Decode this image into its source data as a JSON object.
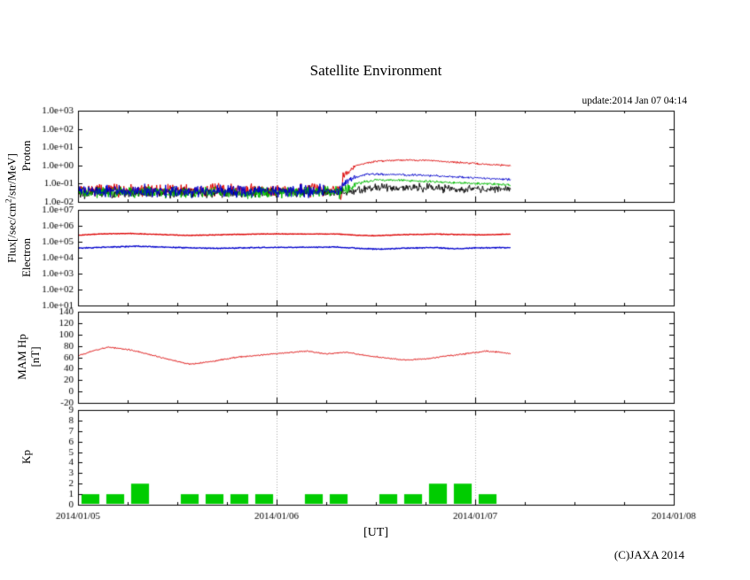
{
  "title": "Satellite Environment",
  "update_text": "update:2014 Jan 07 04:14",
  "copyright": "(C)JAXA 2014",
  "xlabel": "[UT]",
  "flux_label": {
    "pre": "Flux[/sec/cm",
    "sup": "2",
    "post": "/str/MeV]"
  },
  "chart_data": {
    "type": "line",
    "title": "Satellite Environment",
    "x_axis": {
      "range_days": [
        0,
        3
      ],
      "tick_labels": [
        "2014/01/05",
        "2014/01/06",
        "2014/01/07",
        "2014/01/08"
      ],
      "grid_days": [
        1,
        2
      ],
      "minor_tick_hours": 6,
      "major_tick_hours": 24
    },
    "grid_color": "#aaaaaa",
    "panels": [
      {
        "name": "proton",
        "ylabel": "Proton",
        "scale": "log",
        "ymin": 0.01,
        "ymax": 1000,
        "ytick_values": [
          1000,
          100,
          10,
          1,
          0.1,
          0.01
        ],
        "ytick_labels": [
          "1.0e+03",
          "1.0e+02",
          "1.0e+01",
          "1.0e+00",
          "1.0e-01",
          "1.0e-02"
        ],
        "series": [
          {
            "name": "proton-red",
            "color": "#dd0000",
            "points": [
              [
                0,
                0.045
              ],
              [
                1.28,
                0.045
              ],
              [
                1.315,
                0.06
              ],
              [
                1.325,
                0.012
              ],
              [
                1.335,
                0.3
              ],
              [
                1.4,
                1.0
              ],
              [
                1.5,
                1.7
              ],
              [
                1.62,
                2.0
              ],
              [
                1.75,
                1.9
              ],
              [
                1.9,
                1.5
              ],
              [
                2.05,
                1.15
              ],
              [
                2.18,
                1.0
              ]
            ],
            "noise": [
              [
                0,
                0.42
              ],
              [
                1.3,
                0.42
              ],
              [
                1.4,
                0.06
              ],
              [
                2.18,
                0.06
              ]
            ]
          },
          {
            "name": "proton-black",
            "color": "#111111",
            "points": [
              [
                0,
                0.03
              ],
              [
                1.35,
                0.035
              ],
              [
                1.5,
                0.065
              ],
              [
                1.8,
                0.055
              ],
              [
                2.18,
                0.05
              ]
            ],
            "noise": [
              [
                0,
                0.36
              ],
              [
                1.4,
                0.3
              ],
              [
                2.18,
                0.25
              ]
            ]
          },
          {
            "name": "proton-green",
            "color": "#00bb00",
            "points": [
              [
                0,
                0.033
              ],
              [
                1.32,
                0.033
              ],
              [
                1.4,
                0.1
              ],
              [
                1.5,
                0.16
              ],
              [
                1.65,
                0.15
              ],
              [
                1.85,
                0.12
              ],
              [
                2.05,
                0.1
              ],
              [
                2.18,
                0.085
              ]
            ],
            "noise": [
              [
                0,
                0.38
              ],
              [
                1.34,
                0.38
              ],
              [
                1.45,
                0.08
              ],
              [
                2.18,
                0.08
              ]
            ]
          },
          {
            "name": "proton-blue",
            "color": "#0000cc",
            "points": [
              [
                0,
                0.04
              ],
              [
                1.3,
                0.04
              ],
              [
                1.37,
                0.18
              ],
              [
                1.45,
                0.33
              ],
              [
                1.6,
                0.32
              ],
              [
                1.8,
                0.27
              ],
              [
                2.0,
                0.21
              ],
              [
                2.18,
                0.17
              ]
            ],
            "noise": [
              [
                0,
                0.4
              ],
              [
                1.32,
                0.4
              ],
              [
                1.42,
                0.07
              ],
              [
                2.18,
                0.07
              ]
            ]
          }
        ]
      },
      {
        "name": "electron",
        "ylabel": "Electron",
        "scale": "log",
        "ymin": 10,
        "ymax": 10000000,
        "ytick_values": [
          10000000,
          1000000,
          100000,
          10000,
          1000,
          100,
          10
        ],
        "ytick_labels": [
          "1.0e+07",
          "1.0e+06",
          "1.0e+05",
          "1.0e+04",
          "1.0e+03",
          "1.0e+02",
          "1.0e+01"
        ],
        "series": [
          {
            "name": "electron-blue",
            "color": "#0000cc",
            "width": 1.3,
            "points": [
              [
                0,
                40000
              ],
              [
                0.15,
                46000
              ],
              [
                0.3,
                52000
              ],
              [
                0.5,
                43000
              ],
              [
                0.7,
                38000
              ],
              [
                0.9,
                43000
              ],
              [
                1.1,
                45000
              ],
              [
                1.3,
                46000
              ],
              [
                1.42,
                38000
              ],
              [
                1.52,
                34000
              ],
              [
                1.65,
                40000
              ],
              [
                1.8,
                43000
              ],
              [
                1.9,
                36000
              ],
              [
                2.0,
                41000
              ],
              [
                2.18,
                43000
              ]
            ],
            "noise": [
              [
                0,
                0.035
              ],
              [
                2.18,
                0.035
              ]
            ]
          },
          {
            "name": "electron-red",
            "color": "#dd0000",
            "width": 1.3,
            "points": [
              [
                0,
                260000
              ],
              [
                0.12,
                310000
              ],
              [
                0.25,
                330000
              ],
              [
                0.4,
                290000
              ],
              [
                0.55,
                250000
              ],
              [
                0.7,
                270000
              ],
              [
                0.85,
                300000
              ],
              [
                1.0,
                310000
              ],
              [
                1.15,
                300000
              ],
              [
                1.3,
                310000
              ],
              [
                1.4,
                260000
              ],
              [
                1.5,
                240000
              ],
              [
                1.65,
                280000
              ],
              [
                1.8,
                300000
              ],
              [
                1.95,
                280000
              ],
              [
                2.05,
                270000
              ],
              [
                2.18,
                300000
              ]
            ],
            "noise": [
              [
                0,
                0.025
              ],
              [
                2.18,
                0.025
              ]
            ]
          }
        ]
      },
      {
        "name": "mam-hp",
        "ylabel_line1": "MAM Hp",
        "ylabel_line2": "[nT]",
        "scale": "linear",
        "ymin": -20,
        "ymax": 140,
        "ytick_values": [
          140,
          120,
          100,
          80,
          60,
          40,
          20,
          0,
          -20
        ],
        "ytick_labels": [
          "140",
          "120",
          "100",
          "80",
          "60",
          "40",
          "20",
          "0",
          "-20"
        ],
        "series": [
          {
            "name": "hp-red",
            "color": "#dd0000",
            "points": [
              [
                0,
                62
              ],
              [
                0.08,
                72
              ],
              [
                0.16,
                78
              ],
              [
                0.26,
                73
              ],
              [
                0.36,
                65
              ],
              [
                0.46,
                56
              ],
              [
                0.56,
                48
              ],
              [
                0.66,
                52
              ],
              [
                0.8,
                60
              ],
              [
                0.95,
                65
              ],
              [
                1.05,
                68
              ],
              [
                1.15,
                71
              ],
              [
                1.25,
                66
              ],
              [
                1.35,
                69
              ],
              [
                1.45,
                63
              ],
              [
                1.55,
                59
              ],
              [
                1.65,
                55
              ],
              [
                1.75,
                57
              ],
              [
                1.85,
                62
              ],
              [
                1.95,
                66
              ],
              [
                2.05,
                71
              ],
              [
                2.12,
                69
              ],
              [
                2.18,
                66
              ]
            ],
            "noise": [
              [
                0,
                0.7
              ],
              [
                2.18,
                0.7
              ]
            ]
          }
        ]
      },
      {
        "name": "kp",
        "ylabel": "Kp",
        "scale": "linear",
        "ymin": 0,
        "ymax": 9,
        "ytick_values": [
          9,
          8,
          7,
          6,
          5,
          4,
          3,
          2,
          1,
          0
        ],
        "ytick_labels": [
          "9",
          "8",
          "7",
          "6",
          "5",
          "4",
          "3",
          "2",
          "1",
          "0"
        ],
        "bars": {
          "color": "#00cc00",
          "interval_hours": 3,
          "start_day": 0,
          "values": [
            1,
            1,
            2,
            0,
            1,
            1,
            1,
            1,
            0,
            1,
            1,
            0,
            1,
            1,
            2,
            2,
            1
          ]
        }
      }
    ]
  }
}
